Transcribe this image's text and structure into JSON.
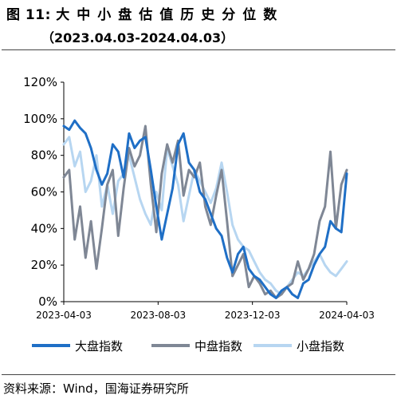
{
  "header": {
    "title_prefix": "图 11:",
    "title_text": "大中小盘估值历史分位数",
    "subtitle": "（2023.04.03-2024.04.03）"
  },
  "footer": {
    "source": "资料来源：Wind，国海证券研究所"
  },
  "chart_data": {
    "type": "line",
    "title": "大中小盘估值历史分位数",
    "subtitle": "（2023.04.03-2024.04.03）",
    "xlabel": "",
    "ylabel": "",
    "x_ticks": [
      "2023-04-03",
      "2023-08-03",
      "2023-12-03",
      "2024-04-03"
    ],
    "y_ticks": [
      "0%",
      "20%",
      "40%",
      "60%",
      "80%",
      "100%",
      "120%"
    ],
    "ylim": [
      0,
      120
    ],
    "grid": false,
    "legend_position": "bottom",
    "x_unit": "weeks since 2023-04-03",
    "x": [
      0,
      1,
      2,
      3,
      4,
      5,
      6,
      7,
      8,
      9,
      10,
      11,
      12,
      13,
      14,
      15,
      16,
      17,
      18,
      19,
      20,
      21,
      22,
      23,
      24,
      25,
      26,
      27,
      28,
      29,
      30,
      31,
      32,
      33,
      34,
      35,
      36,
      37,
      38,
      39,
      40,
      41,
      42,
      43,
      44,
      45,
      46,
      47,
      48,
      49,
      50,
      51,
      52
    ],
    "series": [
      {
        "name": "大盘指数",
        "color": "#1f6fc6",
        "values": [
          96,
          94,
          99,
          95,
          92,
          84,
          72,
          64,
          70,
          86,
          82,
          68,
          92,
          84,
          88,
          90,
          72,
          52,
          34,
          48,
          62,
          86,
          92,
          76,
          72,
          60,
          56,
          48,
          40,
          36,
          24,
          16,
          26,
          30,
          18,
          14,
          12,
          8,
          4,
          2,
          6,
          8,
          4,
          2,
          10,
          12,
          20,
          26,
          30,
          44,
          40,
          38,
          70
        ]
      },
      {
        "name": "中盘指数",
        "color": "#7f8795",
        "values": [
          68,
          72,
          34,
          52,
          24,
          44,
          18,
          40,
          64,
          72,
          36,
          62,
          84,
          74,
          80,
          96,
          64,
          38,
          70,
          86,
          76,
          88,
          58,
          72,
          68,
          76,
          52,
          42,
          58,
          72,
          44,
          14,
          20,
          26,
          8,
          14,
          10,
          4,
          6,
          2,
          4,
          8,
          10,
          22,
          12,
          18,
          26,
          44,
          52,
          82,
          40,
          64,
          72
        ]
      },
      {
        "name": "小盘指数",
        "color": "#b7d6f1",
        "values": [
          86,
          90,
          74,
          82,
          60,
          66,
          80,
          52,
          64,
          48,
          66,
          70,
          80,
          68,
          56,
          48,
          42,
          60,
          50,
          84,
          74,
          64,
          44,
          58,
          72,
          66,
          60,
          54,
          62,
          76,
          60,
          42,
          34,
          30,
          28,
          22,
          16,
          12,
          10,
          6,
          4,
          8,
          12,
          16,
          14,
          18,
          22,
          26,
          20,
          16,
          14,
          18,
          22
        ]
      }
    ]
  }
}
